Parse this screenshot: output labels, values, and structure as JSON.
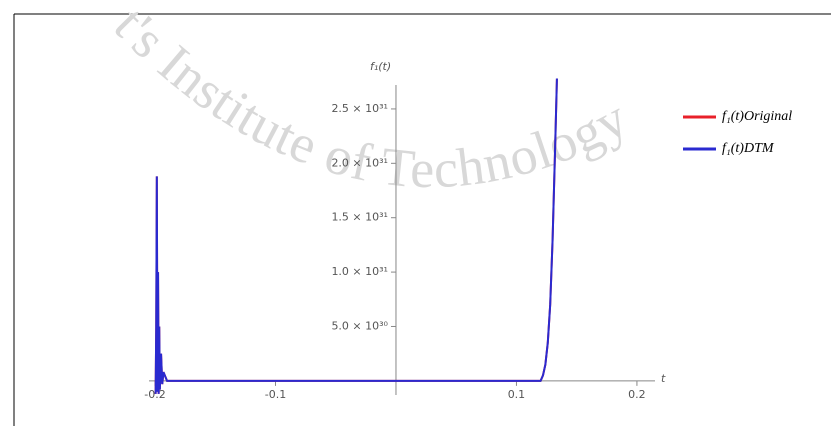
{
  "chart_data": {
    "type": "line",
    "watermark": "t's Institute of Technology",
    "x_label": "t",
    "y_label": "f₁(t)",
    "x": [
      -0.1995,
      -0.199,
      -0.1985,
      -0.198,
      -0.1975,
      -0.197,
      -0.1965,
      -0.196,
      -0.195,
      -0.194,
      -0.193,
      -0.19,
      -0.1,
      0,
      0.1,
      0.12,
      0.122,
      0.124,
      0.126,
      0.128,
      0.13,
      0.132,
      0.1336
    ],
    "series": [
      {
        "name": "f₁(t)Original",
        "color": "#e8202a",
        "values": [
          -1.2e+30,
          5e+30,
          1.88e+31,
          -1e+30,
          1e+31,
          -1.2e+30,
          5e+30,
          -8e+29,
          2.5e+30,
          -3e+29,
          8e+29,
          0,
          0,
          0,
          0,
          0,
          5e+29,
          1.5e+30,
          3.5e+30,
          7e+30,
          1.3e+31,
          2.1e+31,
          2.78e+31
        ]
      },
      {
        "name": "f₁(t)DTM",
        "color": "#2a2ad0",
        "values": [
          -1.2e+30,
          5e+30,
          1.88e+31,
          -1e+30,
          1e+31,
          -1.2e+30,
          5e+30,
          -8e+29,
          2.5e+30,
          -3e+29,
          8e+29,
          0,
          0,
          0,
          0,
          0,
          5e+29,
          1.5e+30,
          3.5e+30,
          7e+30,
          1.3e+31,
          2.1e+31,
          2.78e+31
        ]
      }
    ],
    "xlim": [
      -0.205,
      0.215
    ],
    "ylim": [
      -1.3e+30,
      2.72e+31
    ],
    "xticks": [
      -0.2,
      -0.1,
      0.1,
      0.2
    ],
    "yticks": [
      {
        "value": 5e+30,
        "label": "5.0 × 10³⁰"
      },
      {
        "value": 1e+31,
        "label": "1.0 × 10³¹"
      },
      {
        "value": 1.5e+31,
        "label": "1.5 × 10³¹"
      },
      {
        "value": 2e+31,
        "label": "2.0 × 10³¹"
      },
      {
        "value": 2.5e+31,
        "label": "2.5 × 10³¹"
      }
    ],
    "legend": "right"
  }
}
